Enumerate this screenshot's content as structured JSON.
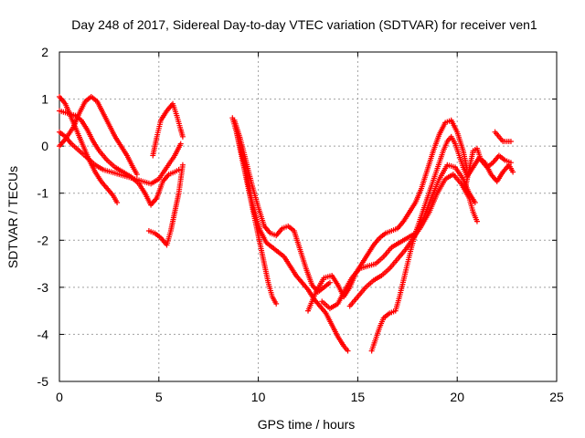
{
  "chart_data": {
    "type": "scatter",
    "title": "Day 248 of 2017, Sidereal Day-to-day VTEC variation (SDTVAR) for receiver ven1",
    "xlabel": "GPS time / hours",
    "ylabel": "SDTVAR / TECUs",
    "xlim": [
      0,
      25
    ],
    "ylim": [
      -5,
      2
    ],
    "xticks": [
      0,
      5,
      10,
      15,
      20,
      25
    ],
    "yticks": [
      -5,
      -4,
      -3,
      -2,
      -1,
      0,
      1,
      2
    ],
    "grid": true,
    "marker": "plus",
    "color": "#ff0000",
    "series": [
      {
        "points": [
          [
            0.0,
            1.05
          ],
          [
            0.3,
            0.9
          ],
          [
            0.6,
            0.6
          ],
          [
            0.9,
            0.3
          ],
          [
            1.2,
            0.0
          ],
          [
            1.5,
            -0.3
          ],
          [
            1.8,
            -0.55
          ],
          [
            2.1,
            -0.75
          ],
          [
            2.4,
            -0.9
          ],
          [
            2.7,
            -1.05
          ],
          [
            2.9,
            -1.2
          ]
        ]
      },
      {
        "points": [
          [
            0.0,
            0.75
          ],
          [
            0.4,
            0.7
          ],
          [
            0.8,
            0.65
          ],
          [
            1.1,
            0.55
          ],
          [
            1.4,
            0.35
          ],
          [
            1.7,
            0.1
          ],
          [
            2.0,
            -0.1
          ],
          [
            2.4,
            -0.3
          ],
          [
            2.8,
            -0.45
          ],
          [
            3.2,
            -0.55
          ],
          [
            3.6,
            -0.65
          ],
          [
            4.0,
            -0.8
          ],
          [
            4.3,
            -1.0
          ],
          [
            4.6,
            -1.25
          ],
          [
            4.9,
            -1.1
          ],
          [
            5.2,
            -0.75
          ],
          [
            5.5,
            -0.6
          ],
          [
            5.8,
            -0.55
          ],
          [
            6.0,
            -0.5
          ]
        ]
      },
      {
        "points": [
          [
            0.0,
            0.3
          ],
          [
            0.3,
            0.2
          ],
          [
            0.6,
            0.05
          ],
          [
            1.0,
            -0.1
          ],
          [
            1.4,
            -0.25
          ],
          [
            1.8,
            -0.4
          ],
          [
            2.2,
            -0.5
          ],
          [
            2.6,
            -0.55
          ],
          [
            3.0,
            -0.6
          ],
          [
            3.4,
            -0.65
          ],
          [
            3.8,
            -0.7
          ],
          [
            4.2,
            -0.75
          ],
          [
            4.6,
            -0.8
          ],
          [
            5.0,
            -0.7
          ],
          [
            5.4,
            -0.45
          ],
          [
            5.8,
            -0.2
          ],
          [
            6.1,
            0.05
          ]
        ]
      },
      {
        "points": [
          [
            0.0,
            0.0
          ],
          [
            0.3,
            0.15
          ],
          [
            0.7,
            0.4
          ],
          [
            1.0,
            0.7
          ],
          [
            1.3,
            0.95
          ],
          [
            1.6,
            1.05
          ],
          [
            1.9,
            0.95
          ],
          [
            2.2,
            0.7
          ],
          [
            2.5,
            0.45
          ],
          [
            2.8,
            0.2
          ],
          [
            3.1,
            0.0
          ],
          [
            3.4,
            -0.2
          ],
          [
            3.7,
            -0.45
          ],
          [
            3.9,
            -0.6
          ]
        ]
      },
      {
        "points": [
          [
            4.7,
            -0.2
          ],
          [
            4.9,
            0.2
          ],
          [
            5.1,
            0.55
          ],
          [
            5.4,
            0.75
          ],
          [
            5.7,
            0.9
          ],
          [
            5.9,
            0.65
          ],
          [
            6.1,
            0.35
          ],
          [
            6.2,
            0.2
          ]
        ]
      },
      {
        "points": [
          [
            4.5,
            -1.8
          ],
          [
            4.8,
            -1.85
          ],
          [
            5.1,
            -1.95
          ],
          [
            5.4,
            -2.1
          ],
          [
            5.6,
            -1.8
          ],
          [
            5.8,
            -1.4
          ],
          [
            6.0,
            -1.0
          ],
          [
            6.2,
            -0.4
          ]
        ]
      },
      {
        "points": [
          [
            8.7,
            0.6
          ],
          [
            8.9,
            0.3
          ],
          [
            9.1,
            -0.1
          ],
          [
            9.3,
            -0.5
          ],
          [
            9.5,
            -0.9
          ],
          [
            9.7,
            -1.3
          ],
          [
            9.9,
            -1.7
          ],
          [
            10.1,
            -2.1
          ],
          [
            10.3,
            -2.5
          ],
          [
            10.5,
            -2.9
          ],
          [
            10.7,
            -3.2
          ],
          [
            10.9,
            -3.35
          ]
        ]
      },
      {
        "points": [
          [
            8.8,
            0.55
          ],
          [
            9.1,
            0.15
          ],
          [
            9.4,
            -0.35
          ],
          [
            9.7,
            -0.85
          ],
          [
            10.0,
            -1.3
          ],
          [
            10.3,
            -1.7
          ],
          [
            10.6,
            -1.85
          ],
          [
            10.9,
            -1.9
          ],
          [
            11.2,
            -1.75
          ],
          [
            11.5,
            -1.7
          ],
          [
            11.8,
            -1.8
          ],
          [
            12.1,
            -2.2
          ],
          [
            12.4,
            -2.6
          ],
          [
            12.7,
            -2.95
          ],
          [
            13.0,
            -3.1
          ],
          [
            13.3,
            -3.0
          ],
          [
            13.6,
            -2.9
          ]
        ]
      },
      {
        "points": [
          [
            8.9,
            0.35
          ],
          [
            9.2,
            -0.2
          ],
          [
            9.5,
            -0.8
          ],
          [
            9.8,
            -1.4
          ],
          [
            10.1,
            -1.8
          ],
          [
            10.4,
            -2.05
          ],
          [
            10.7,
            -2.15
          ],
          [
            11.0,
            -2.25
          ],
          [
            11.3,
            -2.35
          ],
          [
            11.6,
            -2.55
          ],
          [
            11.9,
            -2.75
          ],
          [
            12.2,
            -2.9
          ],
          [
            12.5,
            -3.05
          ],
          [
            12.8,
            -3.25
          ],
          [
            13.1,
            -3.4
          ],
          [
            13.4,
            -3.55
          ],
          [
            13.7,
            -3.8
          ],
          [
            14.0,
            -4.05
          ],
          [
            14.3,
            -4.25
          ],
          [
            14.5,
            -4.35
          ]
        ]
      },
      {
        "points": [
          [
            12.5,
            -3.5
          ],
          [
            12.9,
            -3.1
          ],
          [
            13.3,
            -2.8
          ],
          [
            13.7,
            -2.75
          ],
          [
            14.0,
            -2.95
          ],
          [
            14.3,
            -3.2
          ],
          [
            14.6,
            -3.0
          ],
          [
            14.9,
            -2.7
          ],
          [
            15.2,
            -2.5
          ],
          [
            15.5,
            -2.3
          ],
          [
            15.8,
            -2.1
          ],
          [
            16.1,
            -1.95
          ],
          [
            16.4,
            -1.85
          ],
          [
            16.7,
            -1.8
          ],
          [
            17.0,
            -1.75
          ],
          [
            17.3,
            -1.6
          ],
          [
            17.6,
            -1.4
          ],
          [
            17.9,
            -1.2
          ],
          [
            18.2,
            -0.9
          ],
          [
            18.5,
            -0.5
          ],
          [
            18.8,
            -0.1
          ],
          [
            19.1,
            0.25
          ],
          [
            19.4,
            0.5
          ],
          [
            19.7,
            0.55
          ],
          [
            20.0,
            0.3
          ],
          [
            20.3,
            -0.1
          ],
          [
            20.5,
            -0.5
          ]
        ]
      },
      {
        "points": [
          [
            13.2,
            -3.3
          ],
          [
            13.6,
            -3.45
          ],
          [
            14.0,
            -3.35
          ],
          [
            14.3,
            -3.1
          ],
          [
            14.7,
            -2.8
          ],
          [
            15.1,
            -2.6
          ],
          [
            15.5,
            -2.55
          ],
          [
            15.9,
            -2.5
          ],
          [
            16.3,
            -2.35
          ],
          [
            16.7,
            -2.15
          ],
          [
            17.1,
            -2.05
          ],
          [
            17.5,
            -1.95
          ],
          [
            17.9,
            -1.85
          ],
          [
            18.3,
            -1.55
          ],
          [
            18.7,
            -1.1
          ],
          [
            19.1,
            -0.7
          ],
          [
            19.5,
            -0.4
          ],
          [
            19.9,
            -0.45
          ],
          [
            20.3,
            -0.7
          ],
          [
            20.6,
            -1.0
          ],
          [
            20.9,
            -1.2
          ]
        ]
      },
      {
        "points": [
          [
            14.6,
            -3.4
          ],
          [
            15.0,
            -3.2
          ],
          [
            15.4,
            -3.0
          ],
          [
            15.8,
            -2.85
          ],
          [
            16.2,
            -2.75
          ],
          [
            16.6,
            -2.6
          ],
          [
            17.0,
            -2.4
          ],
          [
            17.4,
            -2.2
          ],
          [
            17.8,
            -1.95
          ],
          [
            18.2,
            -1.7
          ],
          [
            18.6,
            -1.4
          ],
          [
            19.0,
            -1.0
          ],
          [
            19.4,
            -0.7
          ],
          [
            19.8,
            -0.6
          ],
          [
            20.2,
            -0.8
          ],
          [
            20.6,
            -1.1
          ],
          [
            20.8,
            -1.4
          ],
          [
            21.0,
            -1.6
          ]
        ]
      },
      {
        "points": [
          [
            15.7,
            -4.35
          ],
          [
            15.9,
            -4.1
          ],
          [
            16.1,
            -3.85
          ],
          [
            16.3,
            -3.65
          ],
          [
            16.6,
            -3.55
          ],
          [
            16.9,
            -3.5
          ],
          [
            17.1,
            -3.2
          ],
          [
            17.3,
            -2.85
          ],
          [
            17.5,
            -2.5
          ],
          [
            17.7,
            -2.15
          ],
          [
            17.9,
            -1.85
          ],
          [
            18.1,
            -1.6
          ],
          [
            18.3,
            -1.35
          ],
          [
            18.5,
            -1.1
          ],
          [
            18.7,
            -0.85
          ],
          [
            18.9,
            -0.6
          ],
          [
            19.1,
            -0.35
          ],
          [
            19.3,
            -0.1
          ],
          [
            19.5,
            0.1
          ],
          [
            19.7,
            0.2
          ],
          [
            19.9,
            0.05
          ],
          [
            20.1,
            -0.2
          ],
          [
            20.3,
            -0.45
          ],
          [
            20.5,
            -0.65
          ],
          [
            20.8,
            -0.45
          ],
          [
            21.1,
            -0.25
          ],
          [
            21.4,
            -0.35
          ],
          [
            21.7,
            -0.6
          ],
          [
            22.0,
            -0.75
          ],
          [
            22.3,
            -0.55
          ],
          [
            22.6,
            -0.4
          ],
          [
            22.8,
            -0.55
          ]
        ]
      },
      {
        "points": [
          [
            20.4,
            -0.9
          ],
          [
            20.6,
            -0.5
          ],
          [
            20.8,
            -0.1
          ],
          [
            21.0,
            -0.05
          ],
          [
            21.2,
            -0.3
          ],
          [
            21.5,
            -0.45
          ],
          [
            21.8,
            -0.35
          ],
          [
            22.1,
            -0.2
          ],
          [
            22.4,
            -0.3
          ],
          [
            22.7,
            -0.35
          ]
        ]
      },
      {
        "points": [
          [
            21.9,
            0.3
          ],
          [
            22.1,
            0.2
          ],
          [
            22.3,
            0.1
          ],
          [
            22.5,
            0.1
          ],
          [
            22.7,
            0.1
          ]
        ]
      }
    ]
  }
}
